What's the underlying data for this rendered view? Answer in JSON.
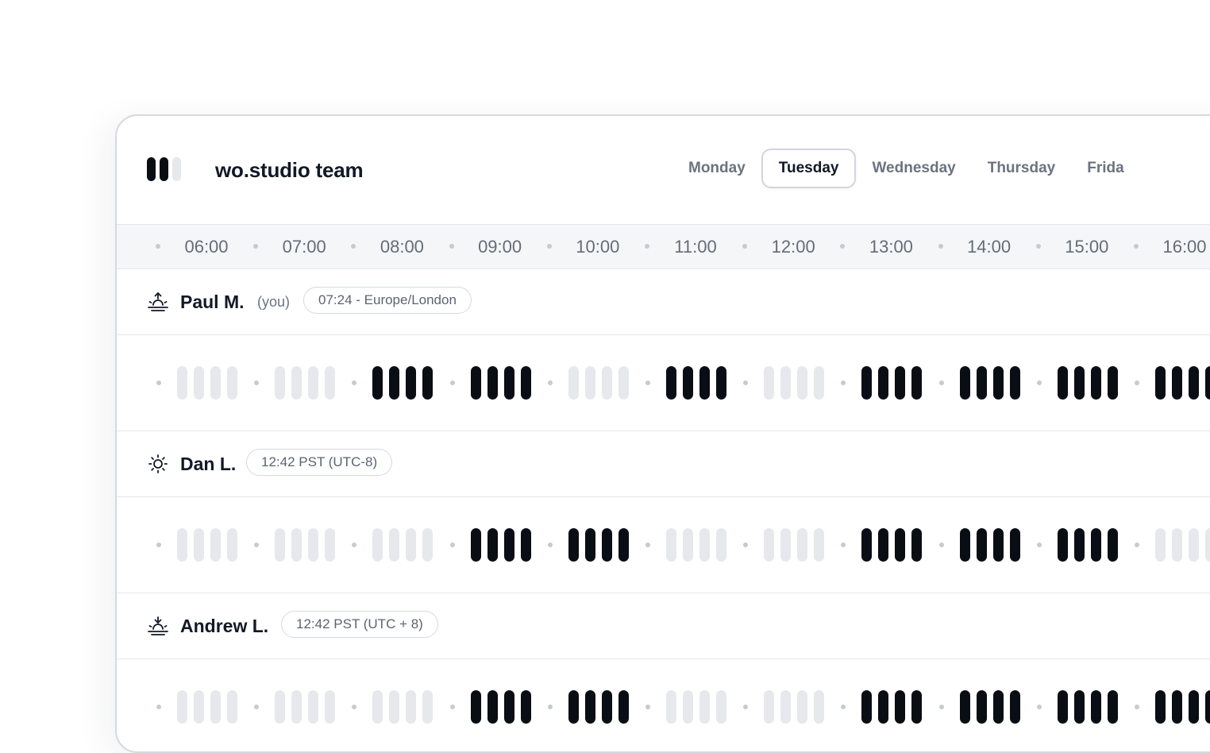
{
  "app": {
    "title": "wo.studio team",
    "logo_icon": "logo-bars-icon",
    "logo_colors": [
      "#0a0d14",
      "#0a0d14",
      "#e6e8ec"
    ]
  },
  "days": [
    {
      "label": "Monday",
      "active": false
    },
    {
      "label": "Tuesday",
      "active": true
    },
    {
      "label": "Wednesday",
      "active": false
    },
    {
      "label": "Thursday",
      "active": false
    },
    {
      "label": "Frida",
      "active": false
    }
  ],
  "hours": [
    "06:00",
    "07:00",
    "08:00",
    "09:00",
    "10:00",
    "11:00",
    "12:00",
    "13:00",
    "14:00",
    "15:00",
    "16:00"
  ],
  "colors": {
    "available": "#0a0d14",
    "unavailable": "#e6e8ec"
  },
  "people": [
    {
      "name": "Paul M.",
      "you_label": "(you)",
      "timezone": "07:24 - Europe/London",
      "icon": "sunrise-icon",
      "availability": [
        false,
        false,
        true,
        true,
        false,
        true,
        false,
        true,
        true,
        true,
        true
      ]
    },
    {
      "name": "Dan L.",
      "timezone": "12:42 PST (UTC-8)",
      "icon": "sun-icon",
      "availability": [
        false,
        false,
        false,
        true,
        true,
        false,
        false,
        true,
        true,
        true,
        false
      ]
    },
    {
      "name": "Andrew L.",
      "timezone": "12:42 PST (UTC + 8)",
      "icon": "sunset-icon",
      "availability": [
        false,
        false,
        false,
        true,
        true,
        false,
        false,
        true,
        true,
        true,
        true
      ]
    }
  ]
}
